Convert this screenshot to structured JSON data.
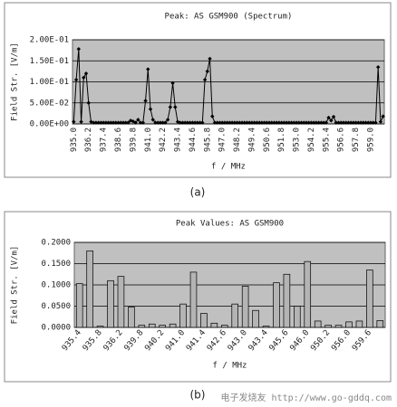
{
  "chart_data": [
    {
      "type": "line",
      "title": "Peak: AS GSM900 (Spectrum)",
      "caption": "(a)",
      "x_label": "f / MHz",
      "y_label": "Field Str. [V/m]",
      "color": "#000000",
      "ylim": [
        0,
        0.2
      ],
      "grid": true,
      "yticks": [
        {
          "value": 0,
          "label": "0.00E+00"
        },
        {
          "value": 0.05,
          "label": "5.00E-02"
        },
        {
          "value": 0.1,
          "label": "1.00E-01"
        },
        {
          "value": 0.15,
          "label": "1.50E-01"
        },
        {
          "value": 0.2,
          "label": "2.00E-01"
        }
      ],
      "categories": [
        "935.0",
        null,
        null,
        null,
        null,
        null,
        "936.2",
        null,
        null,
        null,
        null,
        null,
        "937.4",
        null,
        null,
        null,
        null,
        null,
        "938.6",
        null,
        null,
        null,
        null,
        null,
        "939.8",
        null,
        null,
        null,
        null,
        null,
        "941.0",
        null,
        null,
        null,
        null,
        null,
        "942.2",
        null,
        null,
        null,
        null,
        null,
        "943.4",
        null,
        null,
        null,
        null,
        null,
        "944.6",
        null,
        null,
        null,
        null,
        null,
        "945.8",
        null,
        null,
        null,
        null,
        null,
        "947.0",
        null,
        null,
        null,
        null,
        null,
        "948.2",
        null,
        null,
        null,
        null,
        null,
        "949.4",
        null,
        null,
        null,
        null,
        null,
        "950.6",
        null,
        null,
        null,
        null,
        null,
        "951.8",
        null,
        null,
        null,
        null,
        null,
        "953.0",
        null,
        null,
        null,
        null,
        null,
        "954.2",
        null,
        null,
        null,
        null,
        null,
        "955.4",
        null,
        null,
        null,
        null,
        null,
        "956.6",
        null,
        null,
        null,
        null,
        null,
        "957.8",
        null,
        null,
        null,
        null,
        null,
        "959.0",
        null,
        null,
        null,
        null,
        null
      ],
      "values": [
        0.005,
        0.105,
        0.178,
        0.005,
        0.11,
        0.12,
        0.05,
        0.005,
        0.003,
        0.003,
        0.003,
        0.003,
        0.003,
        0.003,
        0.003,
        0.003,
        0.003,
        0.003,
        0.003,
        0.003,
        0.003,
        0.003,
        0.003,
        0.008,
        0.006,
        0.003,
        0.01,
        0.003,
        0.003,
        0.055,
        0.13,
        0.035,
        0.01,
        0.003,
        0.003,
        0.003,
        0.003,
        0.003,
        0.01,
        0.04,
        0.097,
        0.04,
        0.005,
        0.003,
        0.003,
        0.003,
        0.003,
        0.003,
        0.003,
        0.003,
        0.003,
        0.003,
        0.003,
        0.105,
        0.125,
        0.155,
        0.018,
        0.003,
        0.003,
        0.003,
        0.003,
        0.003,
        0.003,
        0.003,
        0.003,
        0.003,
        0.003,
        0.003,
        0.003,
        0.003,
        0.003,
        0.003,
        0.003,
        0.003,
        0.003,
        0.003,
        0.003,
        0.003,
        0.003,
        0.003,
        0.003,
        0.003,
        0.003,
        0.003,
        0.003,
        0.003,
        0.003,
        0.003,
        0.003,
        0.003,
        0.003,
        0.003,
        0.003,
        0.003,
        0.003,
        0.003,
        0.003,
        0.003,
        0.003,
        0.003,
        0.003,
        0.003,
        0.003,
        0.015,
        0.008,
        0.017,
        0.003,
        0.003,
        0.003,
        0.003,
        0.003,
        0.003,
        0.003,
        0.003,
        0.003,
        0.003,
        0.003,
        0.003,
        0.003,
        0.003,
        0.003,
        0.003,
        0.003,
        0.135,
        0.005,
        0.018
      ]
    },
    {
      "type": "bar",
      "title": "Peak Values: AS GSM900",
      "caption": "(b)",
      "x_label": "f / MHz",
      "y_label": "Field Str. [V/m]",
      "color": "#b4b4b4",
      "ylim": [
        0,
        0.2
      ],
      "grid": true,
      "yticks": [
        {
          "value": 0,
          "label": "0.0000"
        },
        {
          "value": 0.05,
          "label": "0.0500"
        },
        {
          "value": 0.1,
          "label": "0.1000"
        },
        {
          "value": 0.15,
          "label": "0.1500"
        },
        {
          "value": 0.2,
          "label": "0.2000"
        }
      ],
      "categories": [
        "935.4",
        null,
        "935.8",
        null,
        "936.2",
        null,
        "939.8",
        null,
        "940.2",
        null,
        "941.0",
        null,
        "941.4",
        null,
        "942.6",
        null,
        "943.0",
        null,
        "943.4",
        null,
        "945.6",
        null,
        "946.0",
        null,
        "950.2",
        null,
        "956.0",
        null,
        "959.6",
        null
      ],
      "values": [
        0.103,
        0.18,
        0.003,
        0.11,
        0.12,
        0.048,
        0.005,
        0.008,
        0.005,
        0.008,
        0.055,
        0.13,
        0.033,
        0.01,
        0.005,
        0.055,
        0.097,
        0.04,
        0.003,
        0.105,
        0.125,
        0.05,
        0.155,
        0.015,
        0.005,
        0.005,
        0.013,
        0.015,
        0.135,
        0.016
      ]
    }
  ],
  "watermark": "电子发烧友 http://www.go-gddq.com"
}
